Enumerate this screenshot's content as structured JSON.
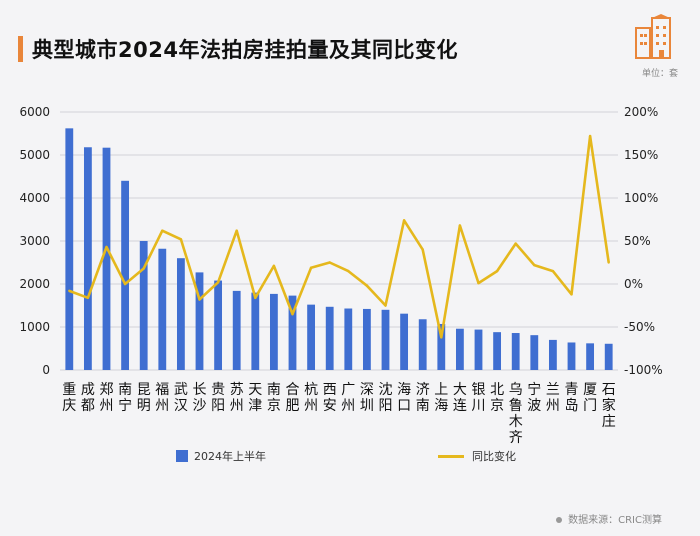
{
  "title": "典型城市2024年法拍房挂拍量及其同比变化",
  "unit": "单位：套",
  "source": "数据来源：CRIC测算",
  "colors": {
    "bar": "#3f6ed1",
    "line": "#e5b81d",
    "accent": "#e9863a"
  },
  "chart_data": {
    "type": "bar",
    "categories": [
      "重庆",
      "成都",
      "郑州",
      "南宁",
      "昆明",
      "福州",
      "武汉",
      "长沙",
      "贵阳",
      "苏州",
      "天津",
      "南京",
      "合肥",
      "杭州",
      "西安",
      "广州",
      "深圳",
      "沈阳",
      "海口",
      "济南",
      "上海",
      "大连",
      "银川",
      "北京",
      "乌鲁木齐",
      "宁波",
      "兰州",
      "青岛",
      "厦门",
      "石家庄"
    ],
    "series": [
      {
        "name": "2024年上半年",
        "type": "bar",
        "axis": "left",
        "values": [
          5620,
          5180,
          5170,
          4400,
          3000,
          2820,
          2600,
          2270,
          2080,
          1840,
          1800,
          1770,
          1730,
          1520,
          1470,
          1430,
          1420,
          1400,
          1310,
          1180,
          1070,
          960,
          940,
          880,
          860,
          810,
          700,
          640,
          620,
          610
        ]
      },
      {
        "name": "同比变化",
        "type": "line",
        "axis": "right",
        "unit": "%",
        "values": [
          -8,
          -16,
          43,
          0,
          18,
          62,
          52,
          -18,
          2,
          62,
          -16,
          21,
          -35,
          19,
          25,
          15,
          -2,
          -25,
          74,
          40,
          -62,
          68,
          1,
          15,
          47,
          22,
          15,
          -12,
          172,
          25
        ]
      }
    ],
    "ylim_left": [
      0,
      6000
    ],
    "yticks_left": [
      "0",
      "1000",
      "2000",
      "3000",
      "4000",
      "5000",
      "6000"
    ],
    "ylim_right": [
      -100,
      200
    ],
    "yticks_right": [
      "-100%",
      "-50%",
      "0%",
      "50%",
      "100%",
      "150%",
      "200%"
    ],
    "grid": true,
    "legend_position": "bottom"
  }
}
